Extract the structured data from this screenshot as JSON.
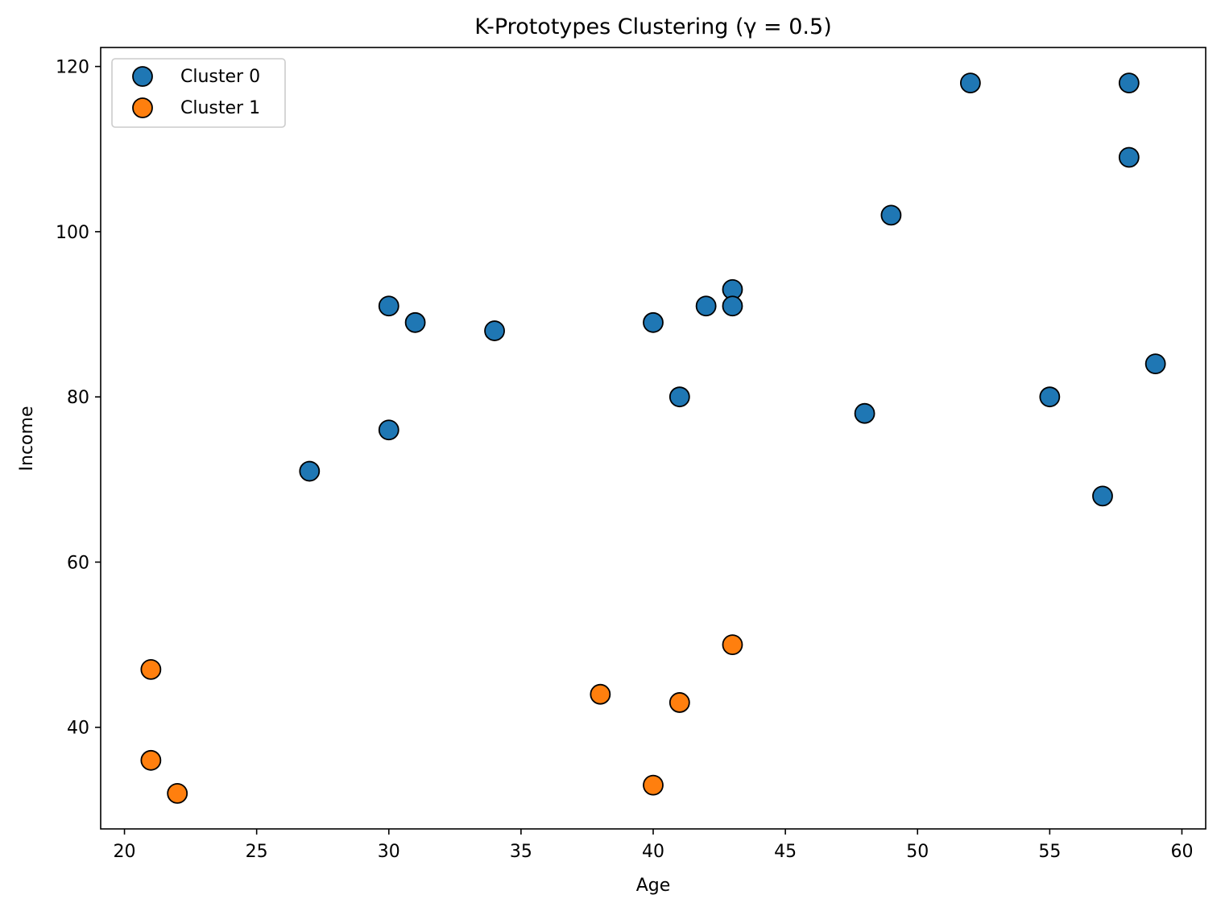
{
  "chart_data": {
    "type": "scatter",
    "title": "K-Prototypes Clustering (γ = 0.5)",
    "xlabel": "Age",
    "ylabel": "Income",
    "xlim": [
      19.1,
      60.9
    ],
    "ylim": [
      27.7,
      122.3
    ],
    "xticks": [
      20,
      25,
      30,
      35,
      40,
      45,
      50,
      55,
      60
    ],
    "yticks": [
      40,
      60,
      80,
      100,
      120
    ],
    "grid": false,
    "legend_position": "top-left",
    "series": [
      {
        "name": "Cluster 0",
        "color": "#1f77b4",
        "points": [
          [
            27,
            71
          ],
          [
            30,
            91
          ],
          [
            30,
            76
          ],
          [
            31,
            89
          ],
          [
            34,
            88
          ],
          [
            40,
            89
          ],
          [
            41,
            80
          ],
          [
            42,
            91
          ],
          [
            43,
            93
          ],
          [
            43,
            91
          ],
          [
            48,
            78
          ],
          [
            49,
            102
          ],
          [
            52,
            118
          ],
          [
            55,
            80
          ],
          [
            57,
            68
          ],
          [
            58,
            118
          ],
          [
            58,
            109
          ],
          [
            59,
            84
          ]
        ]
      },
      {
        "name": "Cluster 1",
        "color": "#ff7f0e",
        "points": [
          [
            21,
            47
          ],
          [
            21,
            36
          ],
          [
            22,
            32
          ],
          [
            38,
            44
          ],
          [
            40,
            33
          ],
          [
            41,
            43
          ],
          [
            43,
            50
          ]
        ]
      }
    ]
  }
}
